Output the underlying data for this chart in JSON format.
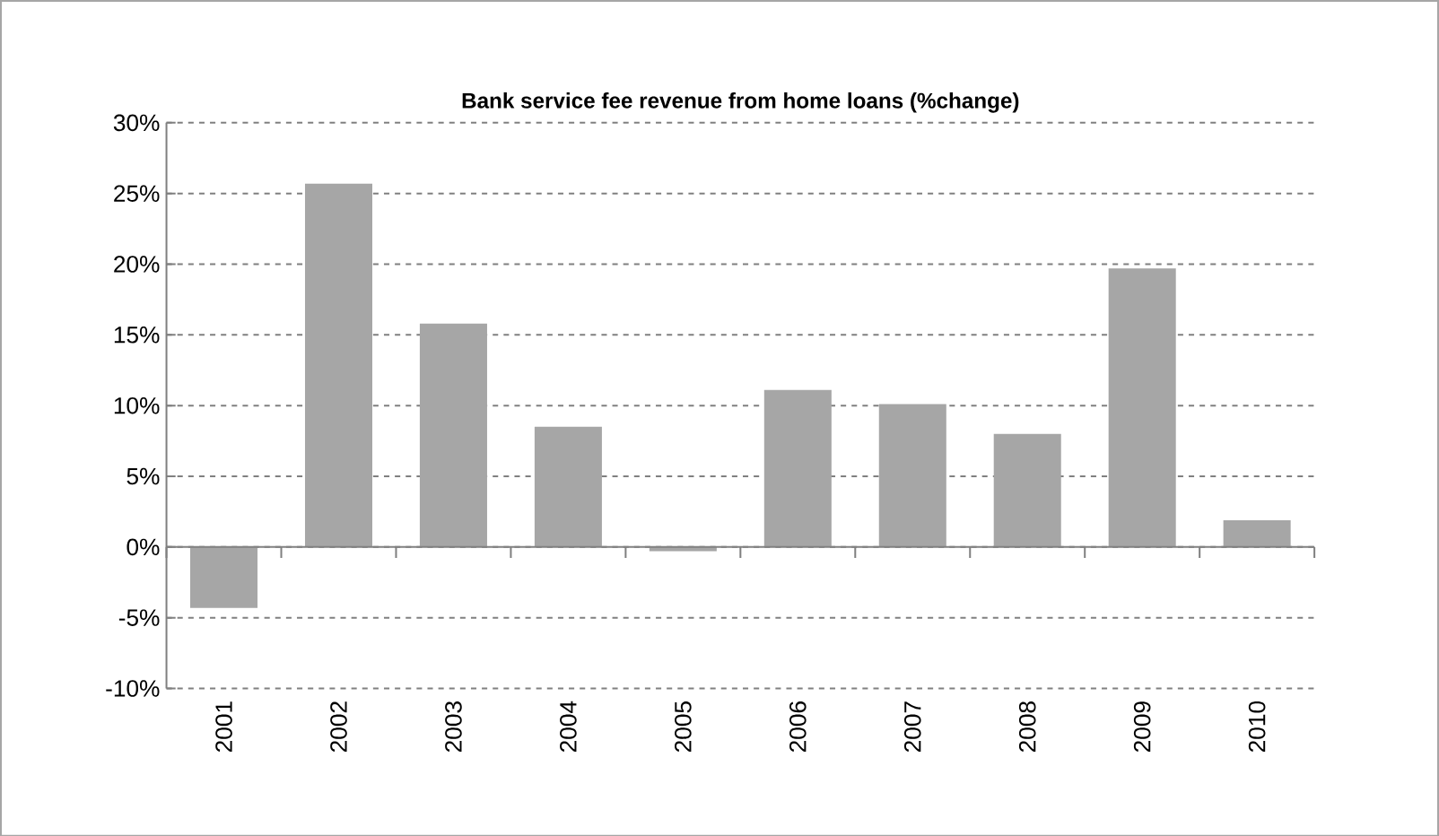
{
  "chart_data": {
    "type": "bar",
    "title": "Bank service fee revenue from home loans (%change)",
    "categories": [
      "2001",
      "2002",
      "2003",
      "2004",
      "2005",
      "2006",
      "2007",
      "2008",
      "2009",
      "2010"
    ],
    "values": [
      -4.3,
      25.7,
      15.8,
      8.5,
      -0.3,
      11.1,
      10.1,
      8.0,
      19.7,
      1.9
    ],
    "color": "#a6a6a6",
    "ylim": [
      -10,
      30
    ],
    "yticks": [
      {
        "value": -10,
        "label": "-10%"
      },
      {
        "value": -5,
        "label": "-5%"
      },
      {
        "value": 0,
        "label": "0%"
      },
      {
        "value": 5,
        "label": "5%"
      },
      {
        "value": 10,
        "label": "10%"
      },
      {
        "value": 15,
        "label": "15%"
      },
      {
        "value": 20,
        "label": "20%"
      },
      {
        "value": 25,
        "label": "25%"
      },
      {
        "value": 30,
        "label": "30%"
      }
    ],
    "grid": "y"
  }
}
